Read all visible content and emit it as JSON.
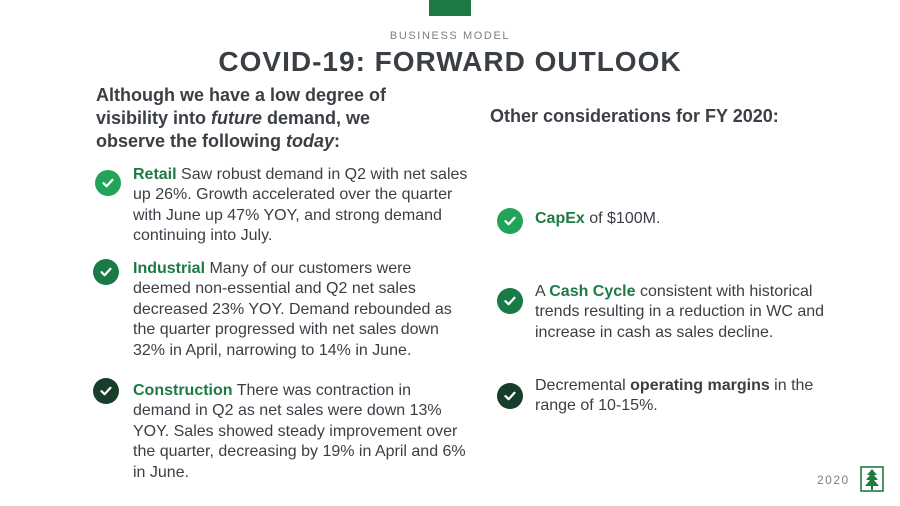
{
  "header": {
    "eyebrow": "BUSINESS MODEL",
    "title": "COVID-19: FORWARD OUTLOOK"
  },
  "left": {
    "heading_parts": {
      "p1": "Although we have a low degree of visibility into ",
      "em1": "future",
      "p2": " demand, we observe the following ",
      "em2": "today",
      "p3": ":"
    },
    "items": [
      {
        "lead": "Retail",
        "text": " Saw robust demand in Q2 with net sales up 26%. Growth accelerated over the quarter with June up 47% YOY, and strong demand continuing into July."
      },
      {
        "lead": "Industrial",
        "text": " Many of our customers were deemed non-essential and Q2 net sales decreased 23% YOY. Demand rebounded as the quarter progressed with net sales down 32% in April, narrowing to 14% in June."
      },
      {
        "lead": "Construction",
        "text": " There was contraction in demand in Q2 as net sales were down 13% YOY. Sales showed steady improvement over the quarter, decreasing by 19% in April and 6% in June."
      }
    ]
  },
  "right": {
    "heading": "Other considerations for FY 2020:",
    "items": [
      {
        "pre": "",
        "bold": "CapEx",
        "post": " of $100M."
      },
      {
        "pre": "A ",
        "bold": "Cash Cycle",
        "post": " consistent with historical trends resulting in a reduction in WC and increase in cash as sales decline."
      },
      {
        "pre": "Decremental ",
        "bold": "operating margins",
        "post": " in the range of 10-15%."
      }
    ]
  },
  "footer": {
    "year": "2020"
  },
  "colors": {
    "brand_green": "#1e7a45",
    "check_bright": "#23a35a",
    "check_mid": "#1a7a46",
    "check_dark": "#173d2b"
  },
  "icons": {
    "check": "check-circle-icon",
    "logo": "tree-logo-icon"
  }
}
